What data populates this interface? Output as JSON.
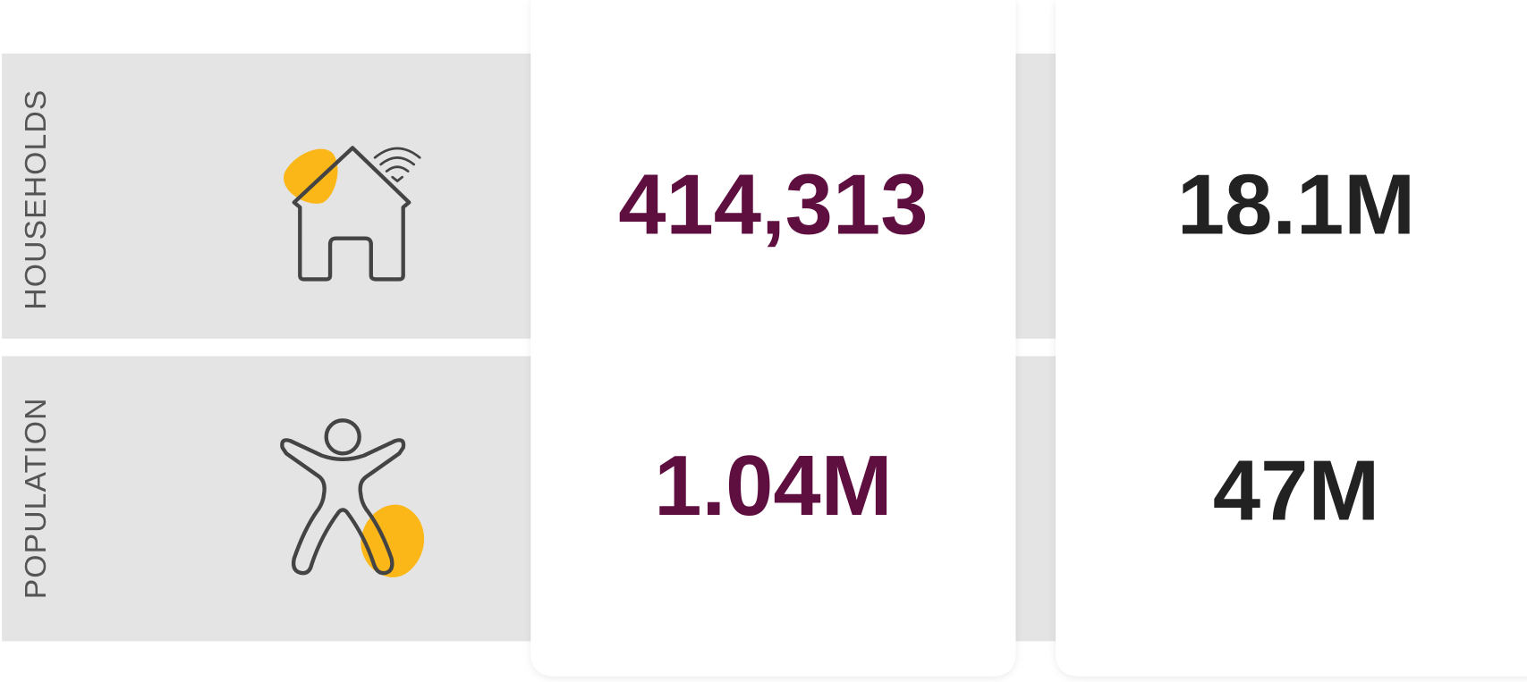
{
  "rows": [
    {
      "label": "HOUSEHOLDS",
      "values": [
        "414,313",
        "18.1M"
      ]
    },
    {
      "label": "POPULATION",
      "values": [
        "1.04M",
        "47M"
      ]
    }
  ]
}
